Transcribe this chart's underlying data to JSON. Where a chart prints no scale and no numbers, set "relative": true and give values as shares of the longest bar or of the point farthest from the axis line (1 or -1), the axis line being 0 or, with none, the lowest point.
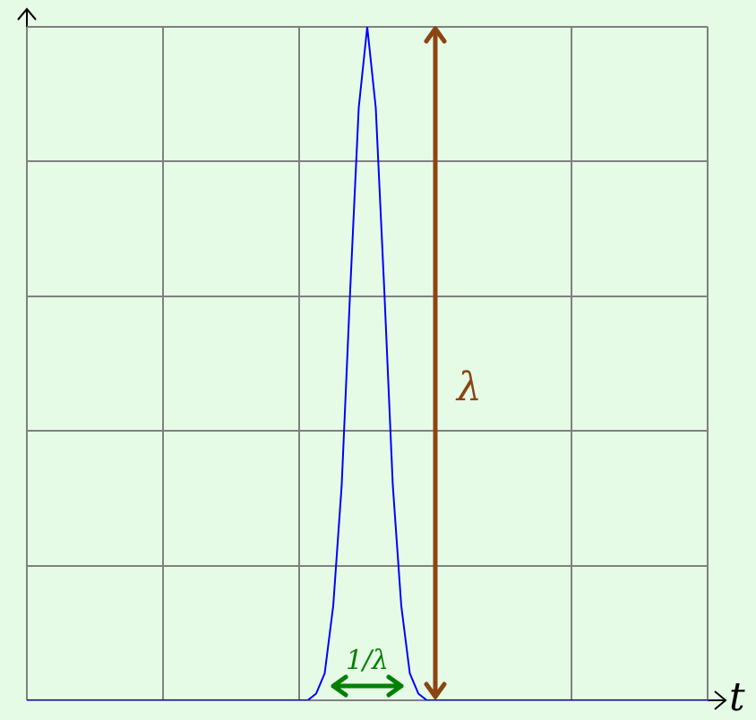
{
  "chart_data": {
    "type": "line",
    "relative": true,
    "xlabel": "t",
    "categories": [
      null,
      null,
      null,
      null,
      null,
      null,
      null,
      null,
      null,
      null,
      null,
      null,
      null,
      null,
      null,
      null,
      null,
      null,
      null,
      null,
      null,
      null,
      null,
      null,
      null,
      null,
      null,
      null,
      null,
      null,
      null,
      null,
      null,
      null,
      null,
      null,
      null,
      null,
      null,
      null,
      null,
      null,
      null,
      null,
      null,
      null,
      null,
      null,
      null,
      null,
      null,
      null,
      null,
      null,
      null,
      null,
      null,
      null,
      null,
      null,
      null,
      null,
      null,
      null,
      null,
      null,
      null,
      null,
      null,
      null,
      null,
      null,
      null,
      null,
      null,
      null,
      null,
      null,
      null,
      null,
      null
    ],
    "series": [
      {
        "color": "#0000ff",
        "values": [
          0,
          0,
          0,
          0,
          0,
          0,
          0,
          0,
          0,
          0,
          0,
          0,
          0,
          0,
          0,
          0,
          0,
          0,
          0,
          0,
          0,
          0,
          0,
          0,
          0,
          0,
          0,
          0,
          0,
          0,
          0,
          0,
          0,
          0,
          0.01,
          0.04,
          0.14,
          0.32,
          0.61,
          0.88,
          1,
          0.88,
          0.61,
          0.32,
          0.14,
          0.04,
          0.01,
          0,
          0,
          0,
          0,
          0,
          0,
          0,
          0,
          0,
          0,
          0,
          0,
          0,
          0,
          0,
          0,
          0,
          0,
          0,
          0,
          0,
          0,
          0,
          0,
          0,
          0,
          0,
          0,
          0,
          0,
          0,
          0,
          0,
          0
        ]
      }
    ],
    "annotations": [
      "λ",
      "1/λ"
    ],
    "grid": true,
    "legend": false,
    "marker": "none",
    "line_style": "solid"
  }
}
